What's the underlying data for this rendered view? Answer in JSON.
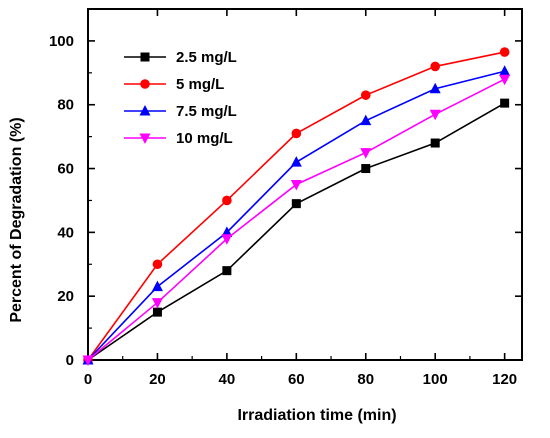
{
  "chart_data": {
    "type": "line",
    "xlabel": "Irradiation time (min)",
    "ylabel": "Percent of Degradation (%)",
    "xlim": [
      0,
      125
    ],
    "ylim": [
      0,
      110
    ],
    "xticks": [
      0,
      20,
      40,
      60,
      80,
      100,
      120
    ],
    "yticks": [
      0,
      20,
      40,
      60,
      80,
      100
    ],
    "grid": false,
    "legend_position": "top-left",
    "x": [
      0,
      20,
      40,
      60,
      80,
      100,
      120
    ],
    "series": [
      {
        "name": "2.5 mg/L",
        "color": "#000000",
        "marker": "square",
        "values": [
          0,
          15,
          28,
          49,
          60,
          68,
          80.5
        ]
      },
      {
        "name": "5 mg/L",
        "color": "#ff0000",
        "marker": "circle",
        "values": [
          0,
          30,
          50,
          71,
          83,
          92,
          96.5
        ]
      },
      {
        "name": "7.5 mg/L",
        "color": "#0000ff",
        "marker": "triangle-up",
        "values": [
          0,
          23,
          40,
          62,
          75,
          85,
          90.5
        ]
      },
      {
        "name": "10 mg/L",
        "color": "#ff00ff",
        "marker": "triangle-down",
        "values": [
          0,
          18,
          38,
          55,
          65,
          77,
          88
        ]
      }
    ]
  }
}
